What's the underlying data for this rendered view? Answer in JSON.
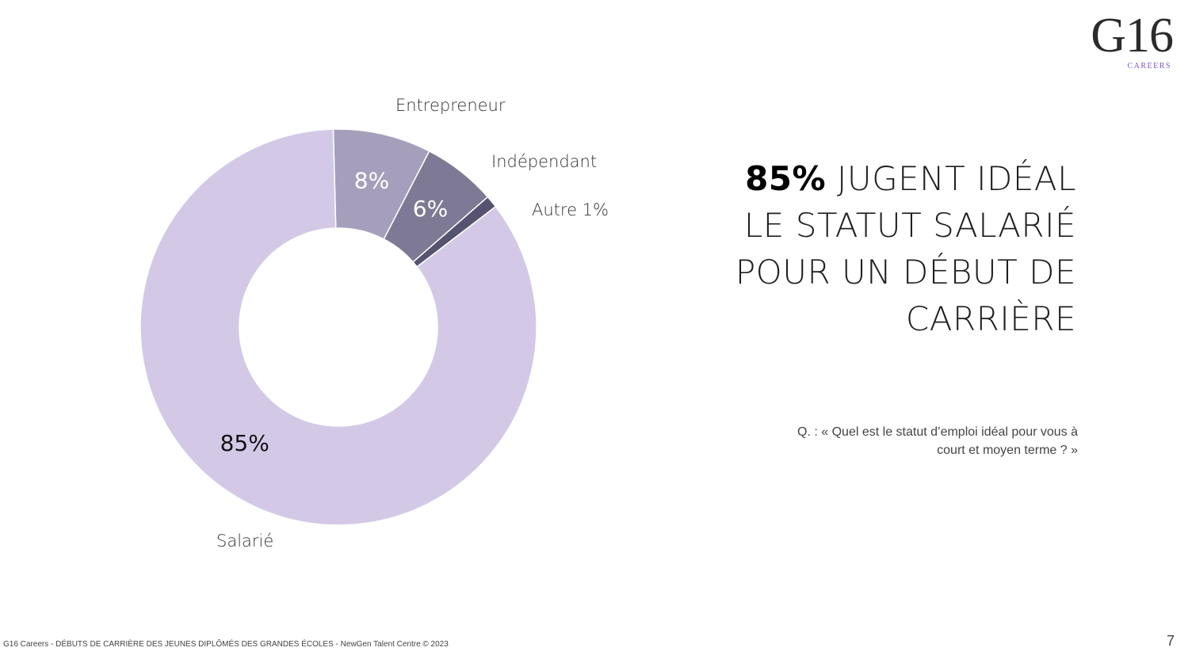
{
  "logo": {
    "mark": "G16",
    "sub": "CAREERS"
  },
  "headline": {
    "strong": "85%",
    "line1_rest": " JUGENT IDÉAL",
    "line2": "LE STATUT SALARIÉ",
    "line3": "POUR UN DÉBUT DE",
    "line4": "CARRIÈRE"
  },
  "question": {
    "line1": "Q. : « Quel est le statut d’emploi idéal pour vous à",
    "line2": "court et moyen terme ? »"
  },
  "footer": "G16 Careers - DÉBUTS DE CARRIÈRE DES JEUNES DIPLÔMÉS DES GRANDES ÉCOLES - NewGen Talent Centre © 2023",
  "page_number": "7",
  "chart_data": {
    "type": "pie",
    "donut": true,
    "slices": [
      {
        "name": "Entrepreneur",
        "value": 8,
        "label": "8%",
        "color": "#a59fbc",
        "label_color": "#ffffff"
      },
      {
        "name": "Indépendant",
        "value": 6,
        "label": "6%",
        "color": "#7e7994",
        "label_color": "#ffffff"
      },
      {
        "name": "Autre",
        "value": 1,
        "label": "Autre 1%",
        "color": "#565370",
        "label_color": "#333333"
      },
      {
        "name": "Salarié",
        "value": 85,
        "label": "85%",
        "color": "#d3c9e7",
        "label_color": "#111111"
      }
    ]
  }
}
